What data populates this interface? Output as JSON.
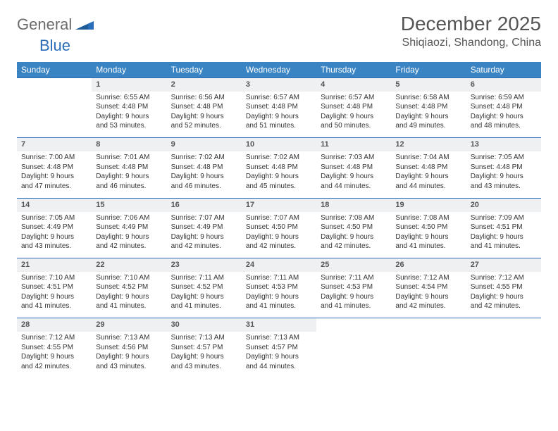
{
  "logo": {
    "part1": "General",
    "part2": "Blue"
  },
  "title": "December 2025",
  "location": "Shiqiaozi, Shandong, China",
  "colors": {
    "header_bg": "#3b84c4",
    "header_text": "#ffffff",
    "daynum_bg": "#eef0f2",
    "border": "#2a6db8",
    "logo_gray": "#6b6b6b",
    "logo_blue": "#2a6db8"
  },
  "weekdays": [
    "Sunday",
    "Monday",
    "Tuesday",
    "Wednesday",
    "Thursday",
    "Friday",
    "Saturday"
  ],
  "weeks": [
    {
      "nums": [
        "",
        "1",
        "2",
        "3",
        "4",
        "5",
        "6"
      ],
      "cells": [
        null,
        {
          "sunrise": "Sunrise: 6:55 AM",
          "sunset": "Sunset: 4:48 PM",
          "daylight": "Daylight: 9 hours and 53 minutes."
        },
        {
          "sunrise": "Sunrise: 6:56 AM",
          "sunset": "Sunset: 4:48 PM",
          "daylight": "Daylight: 9 hours and 52 minutes."
        },
        {
          "sunrise": "Sunrise: 6:57 AM",
          "sunset": "Sunset: 4:48 PM",
          "daylight": "Daylight: 9 hours and 51 minutes."
        },
        {
          "sunrise": "Sunrise: 6:57 AM",
          "sunset": "Sunset: 4:48 PM",
          "daylight": "Daylight: 9 hours and 50 minutes."
        },
        {
          "sunrise": "Sunrise: 6:58 AM",
          "sunset": "Sunset: 4:48 PM",
          "daylight": "Daylight: 9 hours and 49 minutes."
        },
        {
          "sunrise": "Sunrise: 6:59 AM",
          "sunset": "Sunset: 4:48 PM",
          "daylight": "Daylight: 9 hours and 48 minutes."
        }
      ]
    },
    {
      "nums": [
        "7",
        "8",
        "9",
        "10",
        "11",
        "12",
        "13"
      ],
      "cells": [
        {
          "sunrise": "Sunrise: 7:00 AM",
          "sunset": "Sunset: 4:48 PM",
          "daylight": "Daylight: 9 hours and 47 minutes."
        },
        {
          "sunrise": "Sunrise: 7:01 AM",
          "sunset": "Sunset: 4:48 PM",
          "daylight": "Daylight: 9 hours and 46 minutes."
        },
        {
          "sunrise": "Sunrise: 7:02 AM",
          "sunset": "Sunset: 4:48 PM",
          "daylight": "Daylight: 9 hours and 46 minutes."
        },
        {
          "sunrise": "Sunrise: 7:02 AM",
          "sunset": "Sunset: 4:48 PM",
          "daylight": "Daylight: 9 hours and 45 minutes."
        },
        {
          "sunrise": "Sunrise: 7:03 AM",
          "sunset": "Sunset: 4:48 PM",
          "daylight": "Daylight: 9 hours and 44 minutes."
        },
        {
          "sunrise": "Sunrise: 7:04 AM",
          "sunset": "Sunset: 4:48 PM",
          "daylight": "Daylight: 9 hours and 44 minutes."
        },
        {
          "sunrise": "Sunrise: 7:05 AM",
          "sunset": "Sunset: 4:48 PM",
          "daylight": "Daylight: 9 hours and 43 minutes."
        }
      ]
    },
    {
      "nums": [
        "14",
        "15",
        "16",
        "17",
        "18",
        "19",
        "20"
      ],
      "cells": [
        {
          "sunrise": "Sunrise: 7:05 AM",
          "sunset": "Sunset: 4:49 PM",
          "daylight": "Daylight: 9 hours and 43 minutes."
        },
        {
          "sunrise": "Sunrise: 7:06 AM",
          "sunset": "Sunset: 4:49 PM",
          "daylight": "Daylight: 9 hours and 42 minutes."
        },
        {
          "sunrise": "Sunrise: 7:07 AM",
          "sunset": "Sunset: 4:49 PM",
          "daylight": "Daylight: 9 hours and 42 minutes."
        },
        {
          "sunrise": "Sunrise: 7:07 AM",
          "sunset": "Sunset: 4:50 PM",
          "daylight": "Daylight: 9 hours and 42 minutes."
        },
        {
          "sunrise": "Sunrise: 7:08 AM",
          "sunset": "Sunset: 4:50 PM",
          "daylight": "Daylight: 9 hours and 42 minutes."
        },
        {
          "sunrise": "Sunrise: 7:08 AM",
          "sunset": "Sunset: 4:50 PM",
          "daylight": "Daylight: 9 hours and 41 minutes."
        },
        {
          "sunrise": "Sunrise: 7:09 AM",
          "sunset": "Sunset: 4:51 PM",
          "daylight": "Daylight: 9 hours and 41 minutes."
        }
      ]
    },
    {
      "nums": [
        "21",
        "22",
        "23",
        "24",
        "25",
        "26",
        "27"
      ],
      "cells": [
        {
          "sunrise": "Sunrise: 7:10 AM",
          "sunset": "Sunset: 4:51 PM",
          "daylight": "Daylight: 9 hours and 41 minutes."
        },
        {
          "sunrise": "Sunrise: 7:10 AM",
          "sunset": "Sunset: 4:52 PM",
          "daylight": "Daylight: 9 hours and 41 minutes."
        },
        {
          "sunrise": "Sunrise: 7:11 AM",
          "sunset": "Sunset: 4:52 PM",
          "daylight": "Daylight: 9 hours and 41 minutes."
        },
        {
          "sunrise": "Sunrise: 7:11 AM",
          "sunset": "Sunset: 4:53 PM",
          "daylight": "Daylight: 9 hours and 41 minutes."
        },
        {
          "sunrise": "Sunrise: 7:11 AM",
          "sunset": "Sunset: 4:53 PM",
          "daylight": "Daylight: 9 hours and 41 minutes."
        },
        {
          "sunrise": "Sunrise: 7:12 AM",
          "sunset": "Sunset: 4:54 PM",
          "daylight": "Daylight: 9 hours and 42 minutes."
        },
        {
          "sunrise": "Sunrise: 7:12 AM",
          "sunset": "Sunset: 4:55 PM",
          "daylight": "Daylight: 9 hours and 42 minutes."
        }
      ]
    },
    {
      "nums": [
        "28",
        "29",
        "30",
        "31",
        "",
        "",
        ""
      ],
      "cells": [
        {
          "sunrise": "Sunrise: 7:12 AM",
          "sunset": "Sunset: 4:55 PM",
          "daylight": "Daylight: 9 hours and 42 minutes."
        },
        {
          "sunrise": "Sunrise: 7:13 AM",
          "sunset": "Sunset: 4:56 PM",
          "daylight": "Daylight: 9 hours and 43 minutes."
        },
        {
          "sunrise": "Sunrise: 7:13 AM",
          "sunset": "Sunset: 4:57 PM",
          "daylight": "Daylight: 9 hours and 43 minutes."
        },
        {
          "sunrise": "Sunrise: 7:13 AM",
          "sunset": "Sunset: 4:57 PM",
          "daylight": "Daylight: 9 hours and 44 minutes."
        },
        null,
        null,
        null
      ]
    }
  ]
}
